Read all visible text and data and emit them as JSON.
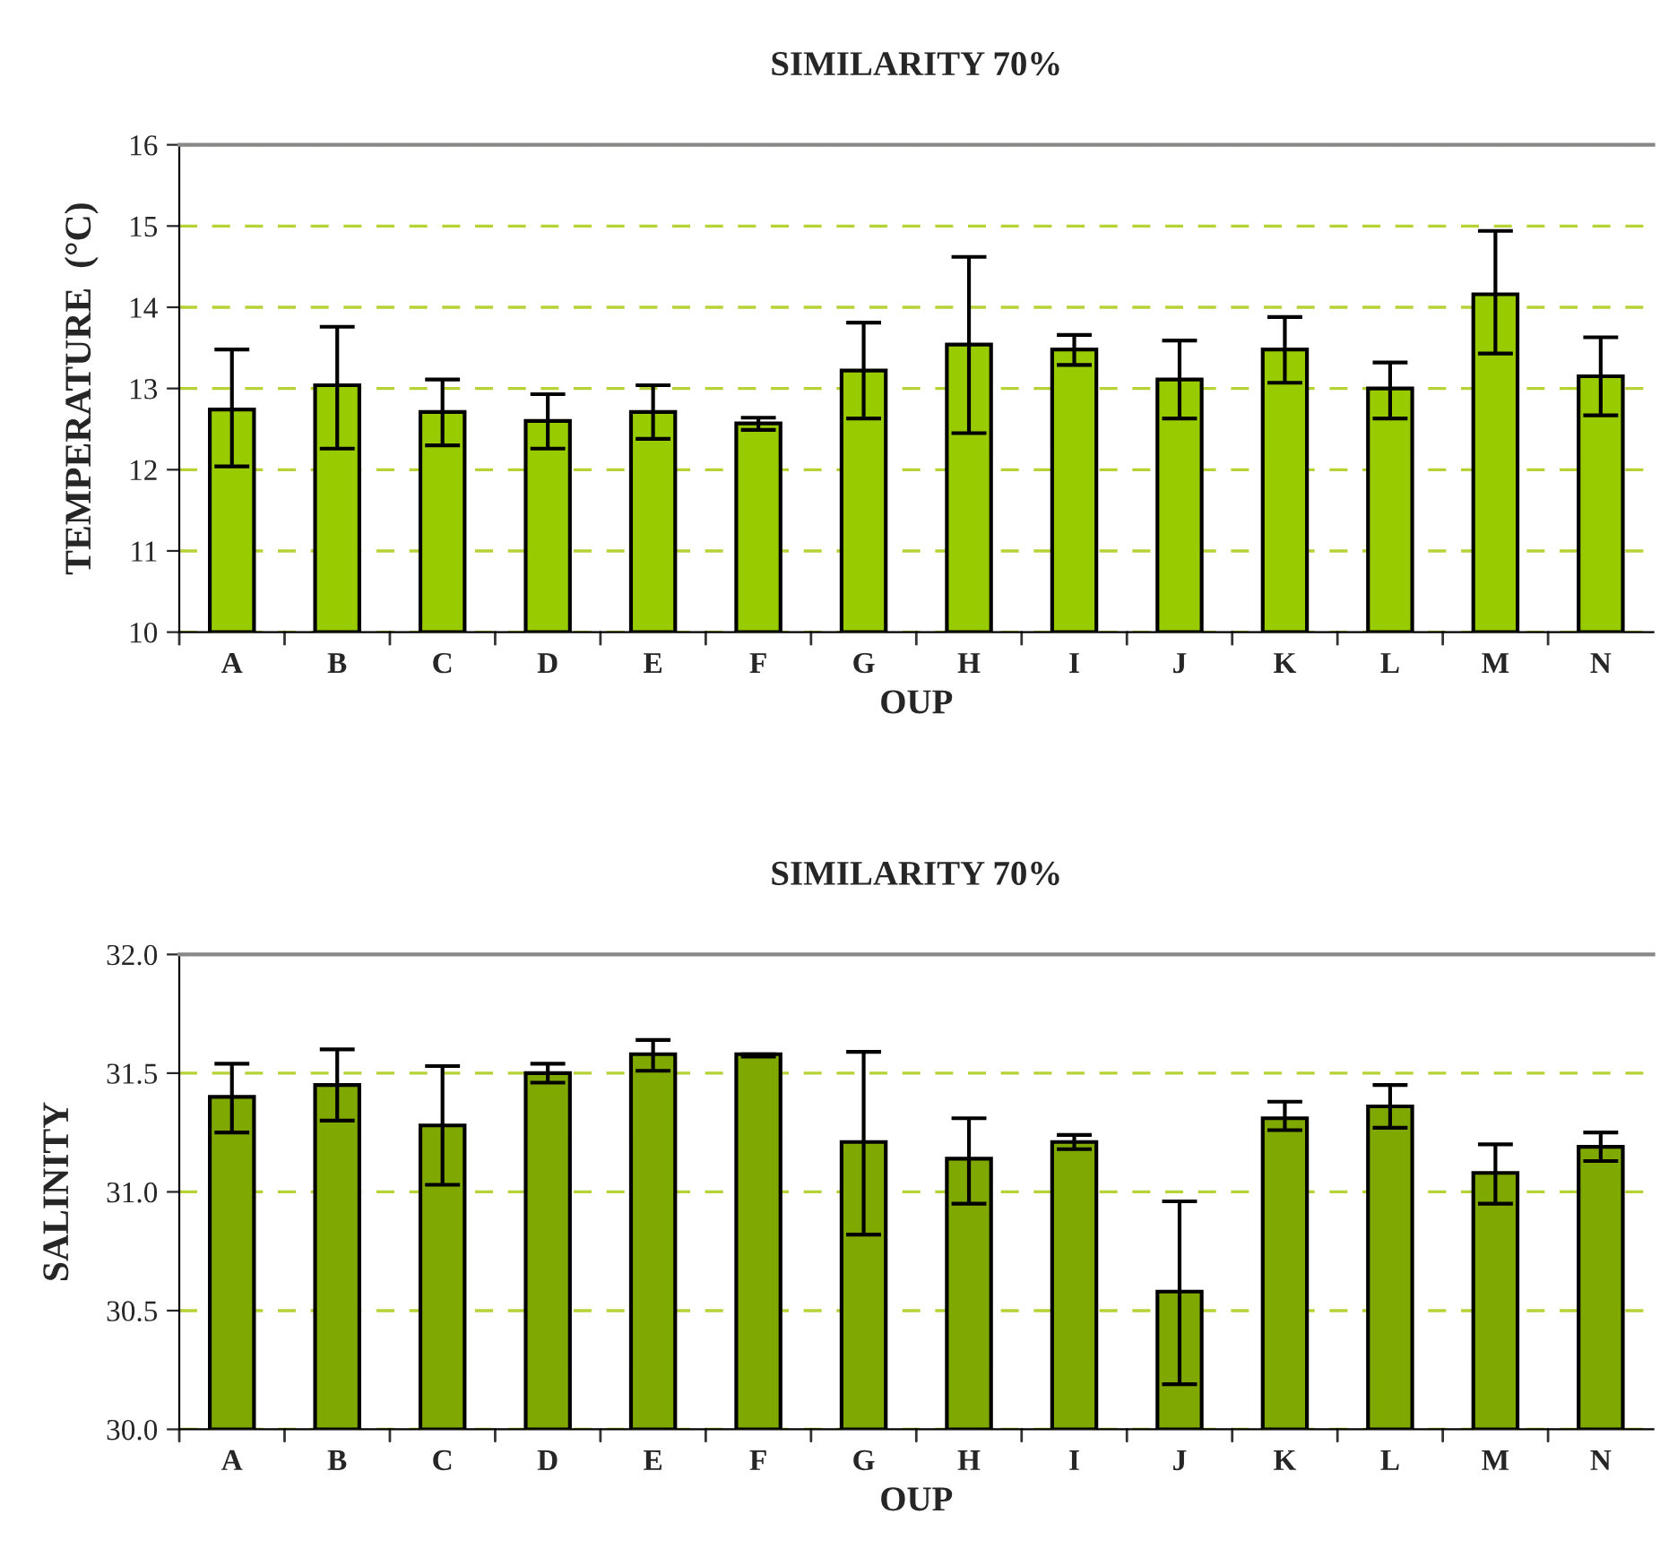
{
  "chart_data": [
    {
      "type": "bar",
      "title": "SIMILARITY 70%",
      "xlabel": "OUP",
      "ylabel": "TEMPERATURE  (°C)",
      "categories": [
        "A",
        "B",
        "C",
        "D",
        "E",
        "F",
        "G",
        "H",
        "I",
        "J",
        "K",
        "L",
        "M",
        "N"
      ],
      "values": [
        12.74,
        13.04,
        12.71,
        12.6,
        12.71,
        12.57,
        13.22,
        13.54,
        13.48,
        13.11,
        13.48,
        13.0,
        14.16,
        13.15
      ],
      "errors": [
        [
          12.04,
          13.48
        ],
        [
          12.26,
          13.76
        ],
        [
          12.3,
          13.11
        ],
        [
          12.26,
          12.93
        ],
        [
          12.38,
          13.04
        ],
        [
          12.49,
          12.64
        ],
        [
          12.63,
          13.81
        ],
        [
          12.45,
          14.62
        ],
        [
          13.29,
          13.66
        ],
        [
          12.63,
          13.59
        ],
        [
          13.07,
          13.88
        ],
        [
          12.63,
          13.32
        ],
        [
          13.43,
          14.94
        ],
        [
          12.67,
          13.63
        ]
      ],
      "color": "#99cc00",
      "ylim": [
        10,
        16
      ],
      "yticks": [
        10,
        11,
        12,
        13,
        14,
        15,
        16
      ],
      "grid": "y"
    },
    {
      "type": "bar",
      "title": "SIMILARITY 70%",
      "xlabel": "OUP",
      "ylabel": "SALINITY",
      "categories": [
        "A",
        "B",
        "C",
        "D",
        "E",
        "F",
        "G",
        "H",
        "I",
        "J",
        "K",
        "L",
        "M",
        "N"
      ],
      "values": [
        31.4,
        31.45,
        31.28,
        31.5,
        31.58,
        31.58,
        31.21,
        31.14,
        31.21,
        30.58,
        31.31,
        31.36,
        31.08,
        31.19
      ],
      "errors": [
        [
          31.25,
          31.54
        ],
        [
          31.3,
          31.6
        ],
        [
          31.03,
          31.53
        ],
        [
          31.46,
          31.54
        ],
        [
          31.51,
          31.64
        ],
        [
          31.57,
          31.58
        ],
        [
          30.82,
          31.59
        ],
        [
          30.95,
          31.31
        ],
        [
          31.18,
          31.24
        ],
        [
          30.19,
          30.96
        ],
        [
          31.26,
          31.38
        ],
        [
          31.27,
          31.45
        ],
        [
          30.95,
          31.2
        ],
        [
          31.13,
          31.25
        ]
      ],
      "color": "#7fa800",
      "ylim": [
        30.0,
        32.0
      ],
      "yticks": [
        {
          "value": 30.0,
          "label": "30.0"
        },
        {
          "value": 30.5,
          "label": "30.5"
        },
        {
          "value": 31.0,
          "label": "31.0"
        },
        {
          "value": 31.5,
          "label": "31.5"
        },
        {
          "value": 32.0,
          "label": "32.0"
        }
      ],
      "grid": "y"
    }
  ]
}
